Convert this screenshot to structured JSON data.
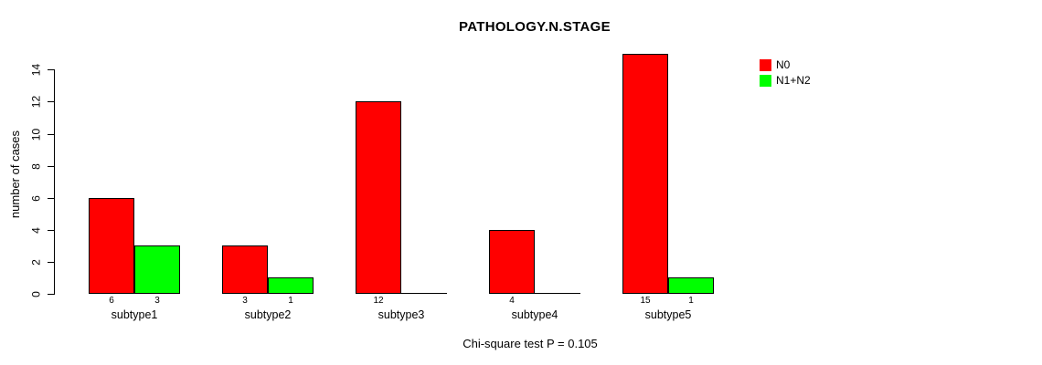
{
  "title": "PATHOLOGY.N.STAGE",
  "ylabel": "number of cases",
  "caption": "Chi-square test P = 0.105",
  "legend": {
    "items": [
      {
        "label": "N0",
        "color": "#ff0000"
      },
      {
        "label": "N1+N2",
        "color": "#00ff00"
      }
    ]
  },
  "chart_data": {
    "type": "bar",
    "title": "PATHOLOGY.N.STAGE",
    "xlabel": "",
    "ylabel": "number of cases",
    "categories": [
      "subtype1",
      "subtype2",
      "subtype3",
      "subtype4",
      "subtype5"
    ],
    "series": [
      {
        "name": "N0",
        "color": "#ff0000",
        "values": [
          6,
          3,
          12,
          4,
          15
        ]
      },
      {
        "name": "N1+N2",
        "color": "#00ff00",
        "values": [
          3,
          1,
          0,
          0,
          1
        ]
      }
    ],
    "yticks": [
      0,
      2,
      4,
      6,
      8,
      10,
      12,
      14
    ],
    "ylim": [
      0,
      14
    ],
    "grid": false,
    "legend_position": "top-right",
    "bar_value_labels_shown": true,
    "annotation": "Chi-square test P = 0.105"
  }
}
